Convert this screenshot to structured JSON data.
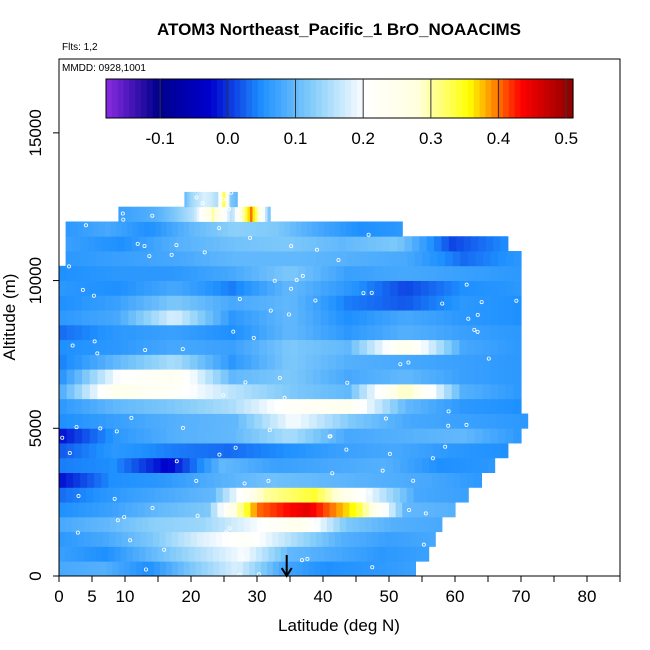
{
  "chart_data": {
    "type": "heatmap",
    "title": "ATOM3 Northeast_Pacific_1 BrO_NOAACIMS",
    "annotations": [
      "Flts: 1,2",
      "MMDD: 0928,1001"
    ],
    "xlabel": "Latitude (deg N)",
    "ylabel": "Altitude (m)",
    "xlim": [
      0,
      85
    ],
    "ylim": [
      0,
      17500
    ],
    "x_ticks": [
      0,
      5,
      10,
      20,
      30,
      40,
      50,
      60,
      70,
      80
    ],
    "y_ticks": [
      0,
      5000,
      10000,
      15000
    ],
    "colorbar": {
      "ticks": [
        -0.1,
        0.0,
        0.1,
        0.2,
        0.3,
        0.4,
        0.5
      ],
      "range": [
        -0.18,
        0.51
      ],
      "colors": [
        "#8a2be2",
        "#00008b",
        "#0000cd",
        "#1e90ff",
        "#87cefa",
        "#ffffff",
        "#ffffe0",
        "#ffff00",
        "#ff0000",
        "#8b0000"
      ]
    },
    "marker": {
      "latitude": 34.5,
      "symbol": "down-arrow"
    },
    "rows": [
      {
        "alt": 250,
        "lat0": 0,
        "lat1": 54,
        "values": [
          0.08,
          0.09,
          0.05,
          0.12,
          0.18,
          0.08,
          0.05,
          0.06,
          0.07
        ]
      },
      {
        "alt": 750,
        "lat0": 0,
        "lat1": 56,
        "values": [
          0.07,
          0.05,
          0.1,
          0.15,
          0.2,
          0.1,
          0.08,
          0.06,
          0.07
        ]
      },
      {
        "alt": 1250,
        "lat0": 0,
        "lat1": 57,
        "values": [
          0.06,
          0.08,
          0.12,
          0.18,
          0.22,
          0.15,
          0.09,
          0.07,
          0.08
        ]
      },
      {
        "alt": 1750,
        "lat0": 0,
        "lat1": 58,
        "values": [
          0.08,
          0.1,
          0.13,
          0.14,
          0.19,
          0.25,
          0.12,
          0.09,
          0.08
        ]
      },
      {
        "alt": 2250,
        "lat0": 0,
        "lat1": 60,
        "values": [
          0.05,
          0.07,
          0.1,
          0.12,
          0.4,
          0.45,
          0.35,
          0.1,
          0.09
        ]
      },
      {
        "alt": 2750,
        "lat0": 0,
        "lat1": 62,
        "values": [
          0.03,
          0.06,
          0.08,
          0.1,
          0.3,
          0.34,
          0.2,
          0.08,
          0.07
        ]
      },
      {
        "alt": 3250,
        "lat0": 0,
        "lat1": 64,
        "values": [
          -0.02,
          0.05,
          0.06,
          0.09,
          0.11,
          0.1,
          0.09,
          0.08,
          0.06
        ]
      },
      {
        "alt": 3750,
        "lat0": 0,
        "lat1": 66,
        "values": [
          0.04,
          0.05,
          -0.03,
          0.1,
          0.07,
          0.08,
          0.09,
          0.05,
          0.06
        ]
      },
      {
        "alt": 4250,
        "lat0": 0,
        "lat1": 68,
        "values": [
          0.02,
          0.06,
          0.04,
          0.03,
          0.05,
          0.07,
          0.08,
          0.06,
          0.05
        ]
      },
      {
        "alt": 4750,
        "lat0": 0,
        "lat1": 70,
        "values": [
          -0.02,
          0.06,
          0.09,
          0.1,
          0.15,
          0.08,
          0.09,
          0.1,
          0.06
        ]
      },
      {
        "alt": 5250,
        "lat0": 0,
        "lat1": 71,
        "values": [
          0.05,
          0.07,
          0.09,
          0.1,
          0.2,
          0.12,
          0.08,
          0.07,
          0.06
        ]
      },
      {
        "alt": 5750,
        "lat0": 0,
        "lat1": 70,
        "values": [
          0.06,
          0.1,
          0.12,
          0.15,
          0.22,
          0.24,
          0.1,
          0.06,
          0.05
        ]
      },
      {
        "alt": 6250,
        "lat0": 0,
        "lat1": 70,
        "values": [
          0.08,
          0.25,
          0.22,
          0.16,
          0.12,
          0.1,
          0.3,
          0.09,
          0.06
        ]
      },
      {
        "alt": 6750,
        "lat0": 0,
        "lat1": 70,
        "values": [
          0.05,
          0.2,
          0.24,
          0.1,
          0.12,
          0.08,
          0.1,
          0.07,
          0.06
        ]
      },
      {
        "alt": 7250,
        "lat0": 0,
        "lat1": 70,
        "values": [
          0.04,
          0.1,
          0.15,
          0.06,
          0.12,
          0.09,
          0.08,
          0.07,
          0.06
        ]
      },
      {
        "alt": 7750,
        "lat0": 0,
        "lat1": 70,
        "values": [
          0.05,
          0.06,
          0.08,
          0.07,
          0.12,
          0.1,
          0.25,
          0.08,
          0.06
        ]
      },
      {
        "alt": 8250,
        "lat0": 0,
        "lat1": 70,
        "values": [
          0.03,
          0.06,
          0.07,
          0.05,
          0.1,
          0.06,
          0.09,
          0.07,
          0.06
        ]
      },
      {
        "alt": 8750,
        "lat0": 0,
        "lat1": 70,
        "values": [
          0.06,
          0.08,
          0.18,
          0.06,
          0.1,
          0.05,
          0.08,
          0.06,
          0.05
        ]
      },
      {
        "alt": 9250,
        "lat0": 0,
        "lat1": 70,
        "values": [
          0.05,
          0.07,
          0.12,
          0.08,
          0.1,
          0.04,
          0.02,
          0.06,
          0.05
        ]
      },
      {
        "alt": 9750,
        "lat0": 0,
        "lat1": 70,
        "values": [
          0.06,
          0.05,
          0.08,
          0.04,
          0.1,
          0.06,
          0.01,
          0.05,
          0.06
        ]
      },
      {
        "alt": 10250,
        "lat0": 0,
        "lat1": 70,
        "values": [
          0.05,
          0.06,
          0.06,
          0.08,
          0.12,
          0.07,
          0.08,
          0.07,
          0.06
        ]
      },
      {
        "alt": 10750,
        "lat0": 1,
        "lat1": 70,
        "values": [
          0.06,
          0.07,
          0.08,
          0.1,
          0.1,
          0.09,
          0.08,
          0.03,
          0.06
        ]
      },
      {
        "alt": 11250,
        "lat0": 1,
        "lat1": 68,
        "values": [
          0.07,
          0.05,
          0.09,
          0.11,
          0.12,
          0.1,
          0.12,
          0.01,
          0.05
        ]
      },
      {
        "alt": 11750,
        "lat0": 1,
        "lat1": 52,
        "values": [
          0.06,
          0.08,
          0.05,
          0.1,
          0.13,
          0.12,
          0.08,
          0.05,
          0.06
        ]
      },
      {
        "alt": 12250,
        "lat0": 9,
        "lat1": 32,
        "values": [
          0.07,
          0.08,
          0.09,
          0.12,
          0.16,
          0.3,
          0.15,
          0.4,
          0.1
        ]
      },
      {
        "alt": 12750,
        "lat0": 19,
        "lat1": 27,
        "values": [
          0.1,
          0.14,
          0.16,
          0.18,
          0.17,
          0.15,
          0.35,
          0.12,
          0.1
        ]
      }
    ]
  }
}
